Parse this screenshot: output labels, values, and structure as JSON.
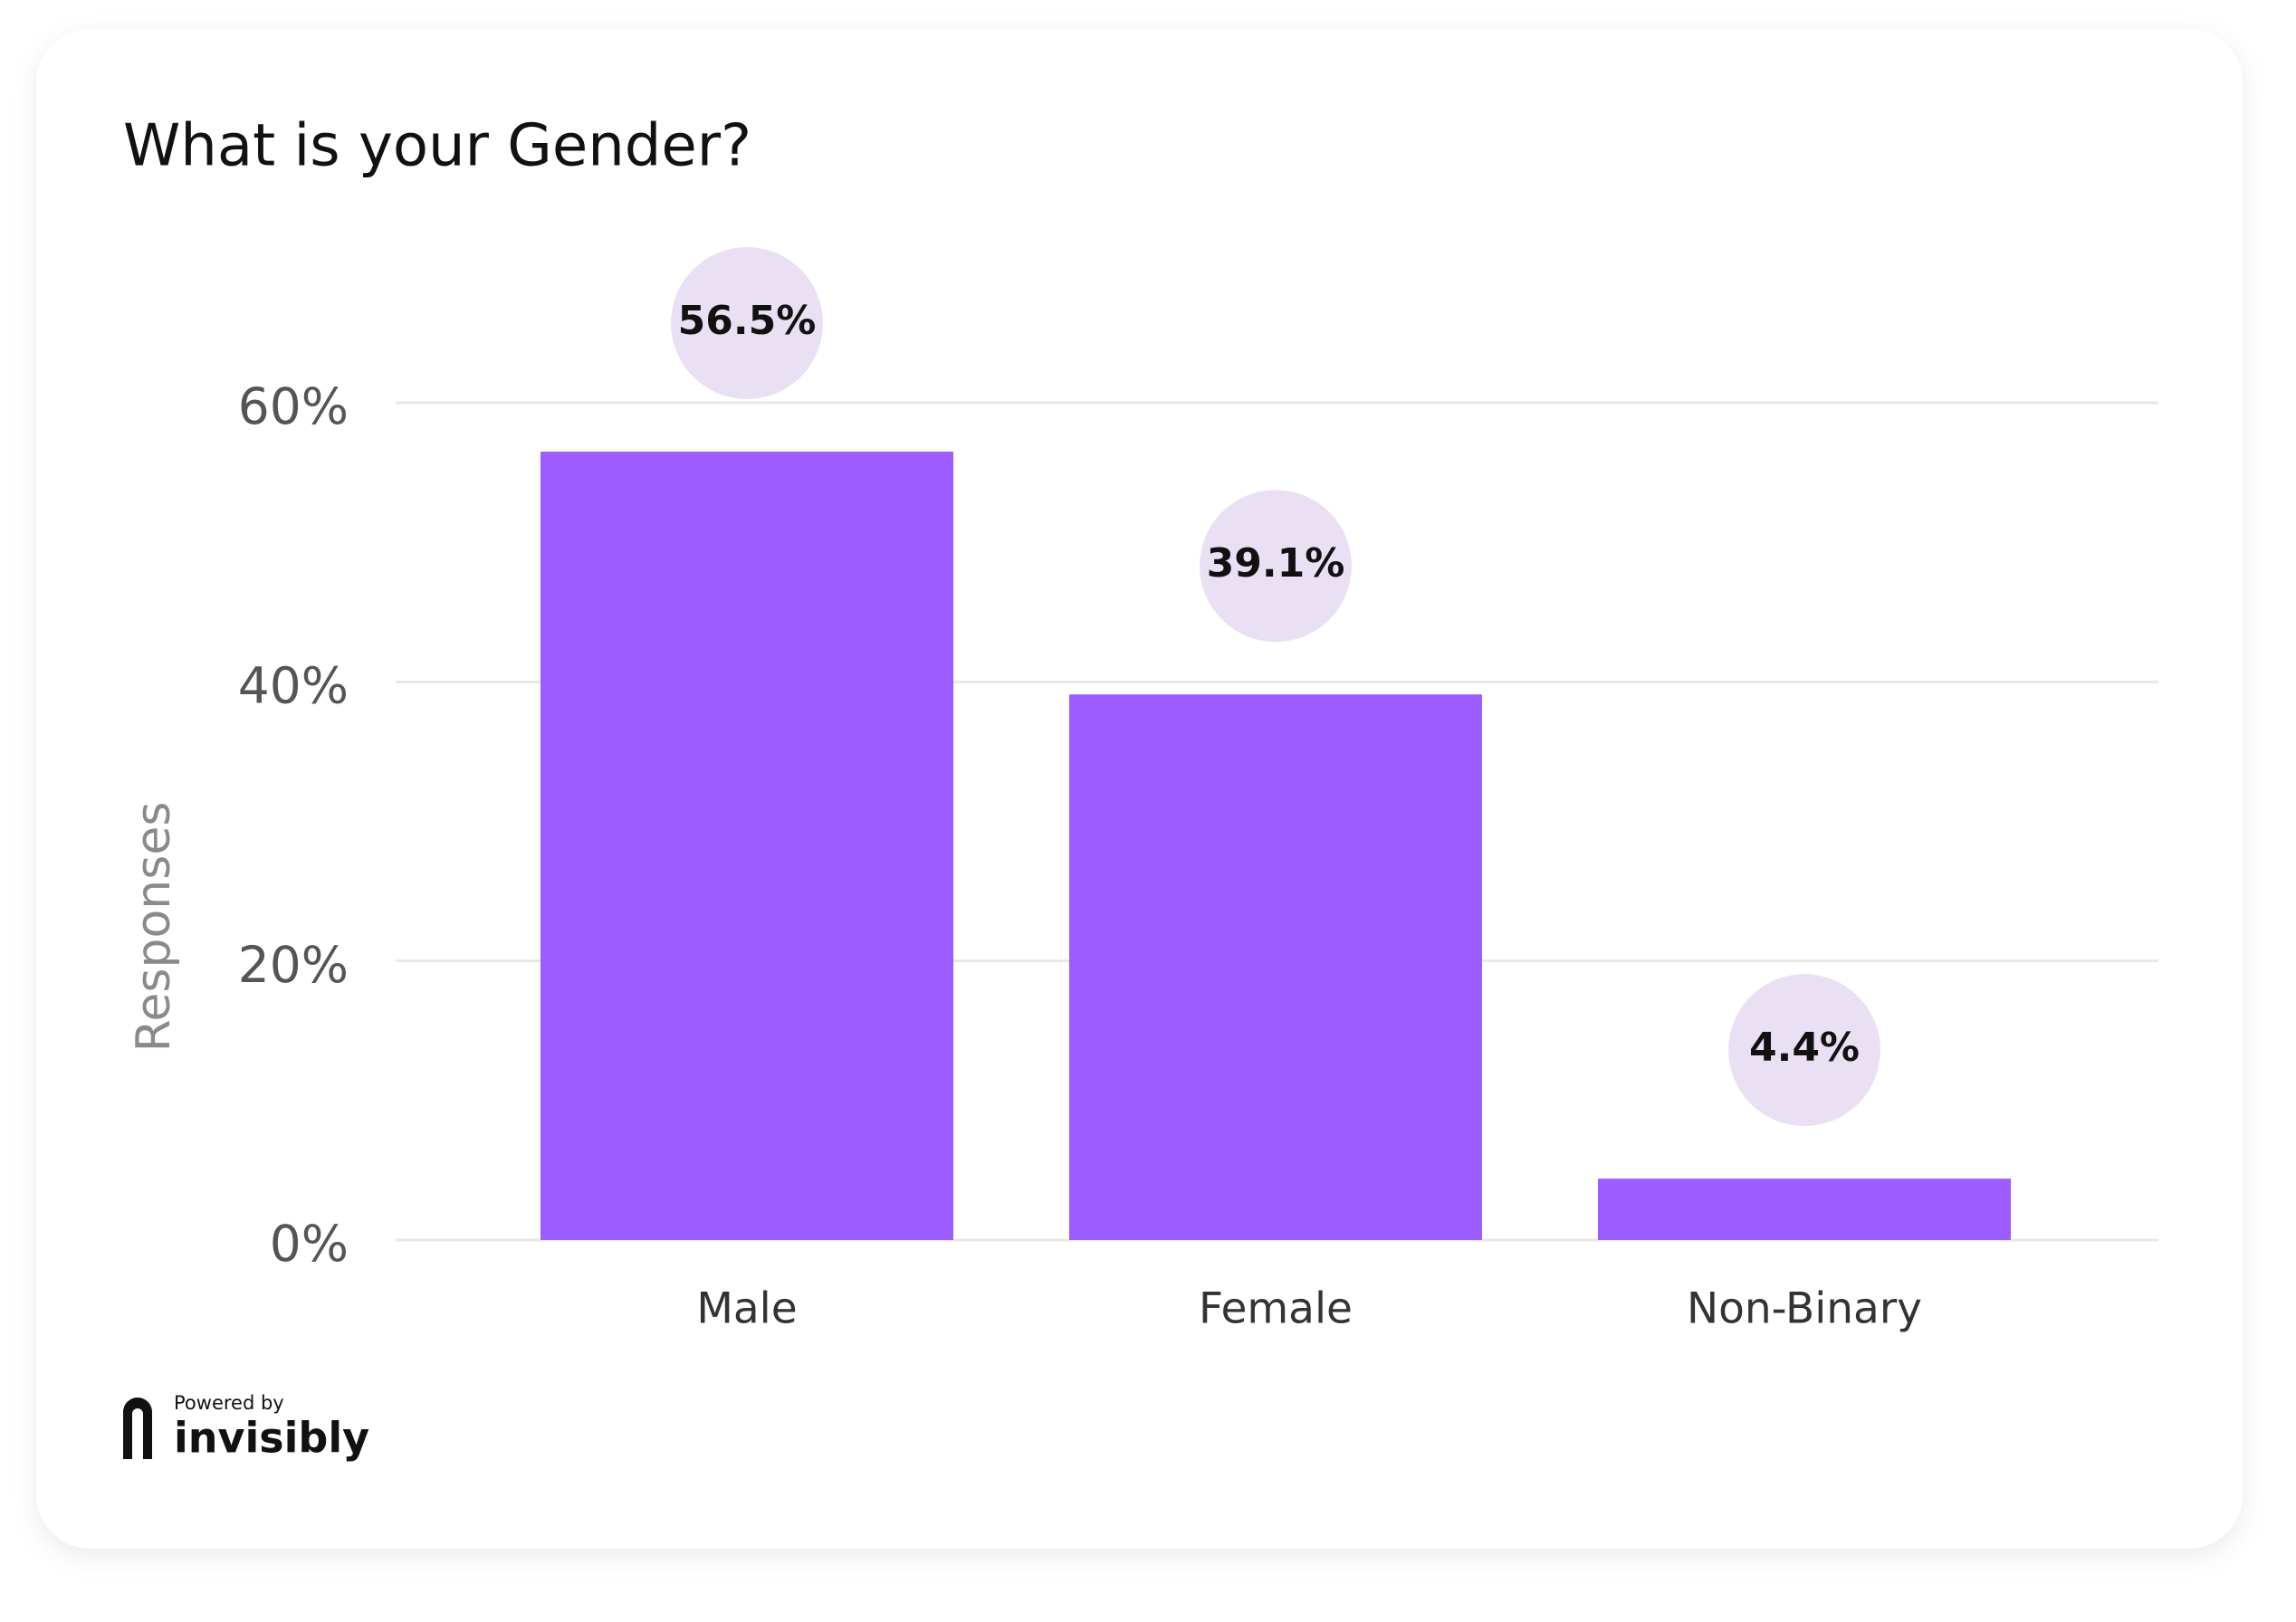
{
  "chart_data": {
    "type": "bar",
    "title": "What is your Gender?",
    "categories": [
      "Male",
      "Female",
      "Non-Binary"
    ],
    "values": [
      56.5,
      39.1,
      4.4
    ],
    "value_labels": [
      "56.5%",
      "39.1%",
      "4.4%"
    ],
    "color": "#9c5cff",
    "y_label": "Responses",
    "ylim": [
      0,
      60
    ],
    "yticks": [
      {
        "value": 0,
        "label": "0%"
      },
      {
        "value": 20,
        "label": "20%"
      },
      {
        "value": 40,
        "label": "40%"
      },
      {
        "value": 60,
        "label": "60%"
      }
    ],
    "grid": true
  },
  "branding": {
    "powered_by": "Powered by",
    "name": "invisibly"
  }
}
